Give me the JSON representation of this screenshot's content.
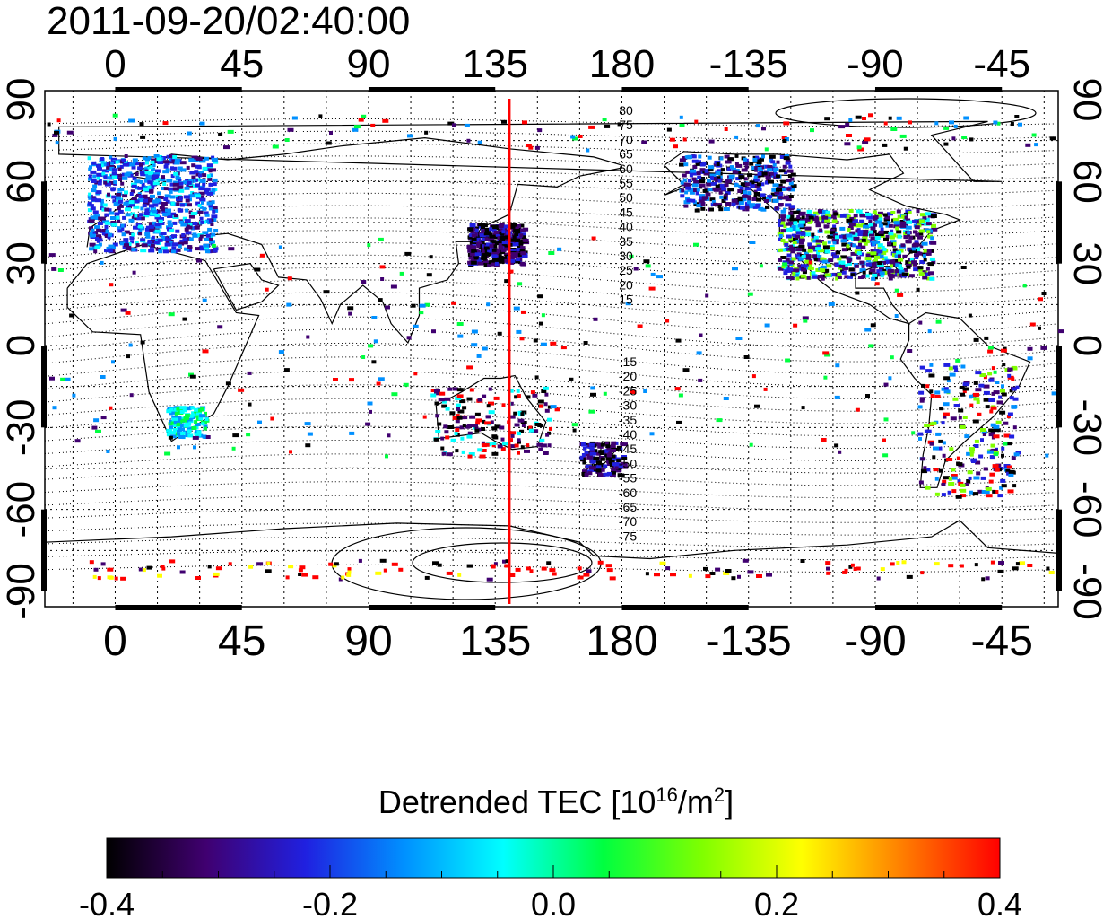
{
  "title": "2011-09-20/02:40:00",
  "map": {
    "top_tick_labels": [
      "0",
      "45",
      "90",
      "135",
      "180",
      "-135",
      "-90",
      "-45"
    ],
    "bottom_tick_labels": [
      "0",
      "45",
      "90",
      "135",
      "180",
      "-135",
      "-90",
      "-45"
    ],
    "left_tick_labels": [
      "90",
      "60",
      "30",
      "0",
      "-30",
      "-60",
      "-90"
    ],
    "right_tick_labels": [
      "90",
      "60",
      "30",
      "0",
      "-30",
      "-60",
      "-90"
    ],
    "contour_labels_north": [
      "80",
      "75",
      "70",
      "65",
      "60",
      "55",
      "50",
      "45",
      "40",
      "35",
      "30",
      "25",
      "20",
      "15"
    ],
    "contour_labels_south": [
      "-15",
      "-20",
      "-25",
      "-30",
      "-35",
      "-40",
      "-45",
      "-50",
      "-55",
      "-60",
      "-65",
      "-70",
      "-75"
    ],
    "marker_longitude": 140,
    "marker_color": "#ff0000"
  },
  "colorbar": {
    "title_main": "Detrended TEC  [10",
    "title_exp1": "16",
    "title_mid": "/m",
    "title_exp2": "2",
    "title_end": "]",
    "tick_labels": [
      "-0.4",
      "-0.2",
      "0.0",
      "0.2",
      "0.4"
    ],
    "range": [
      -0.4,
      0.4
    ],
    "colors": [
      "#000000",
      "#400070",
      "#2020e0",
      "#0090ff",
      "#00ffff",
      "#00ff40",
      "#80ff00",
      "#ffff00",
      "#ff8000",
      "#ff0000"
    ]
  }
}
